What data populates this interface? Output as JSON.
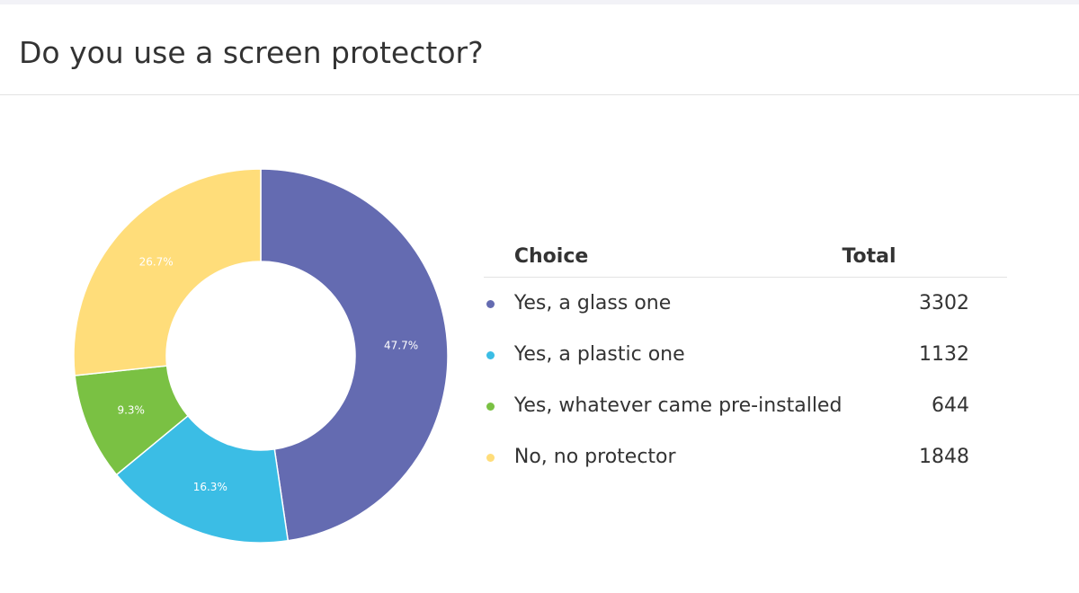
{
  "page": {
    "title": "Do you use a screen protector?"
  },
  "table": {
    "header_choice": "Choice",
    "header_total": "Total"
  },
  "colors": {
    "glass": "#646BB1",
    "plastic": "#3BBDE5",
    "preinstalled": "#7AC143",
    "none": "#FFDD7A"
  },
  "chart_data": {
    "type": "pie",
    "donut": true,
    "categories": [
      "Yes, a glass one",
      "Yes, a plastic one",
      "Yes, whatever came pre-installed",
      "No, no protector"
    ],
    "values": [
      3302,
      1132,
      644,
      1848
    ],
    "percent_labels": [
      "47.7%",
      "16.3%",
      "9.3%",
      "26.7%"
    ],
    "colors": [
      "#646BB1",
      "#3BBDE5",
      "#7AC143",
      "#FFDD7A"
    ]
  }
}
